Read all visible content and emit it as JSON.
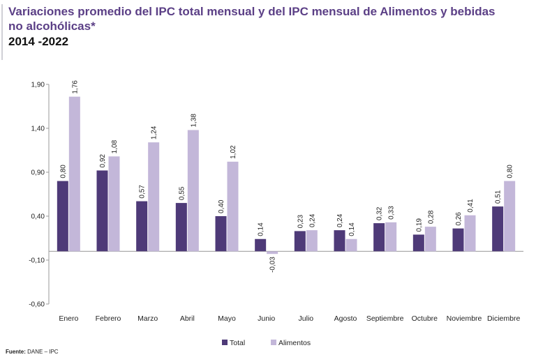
{
  "header": {
    "title": "Variaciones promedio del IPC total mensual y del IPC mensual de Alimentos y bebidas no alcohólicas*",
    "subtitle": "2014 -2022"
  },
  "footer": {
    "source_label": "Fuente:",
    "source_text": "DANE – IPC"
  },
  "colors": {
    "total": "#4e3a78",
    "alimentos": "#c3b7d9"
  },
  "chart_data": {
    "type": "bar",
    "categories": [
      "Enero",
      "Febrero",
      "Marzo",
      "Abril",
      "Mayo",
      "Junio",
      "Julio",
      "Agosto",
      "Septiembre",
      "Octubre",
      "Noviembre",
      "Diciembre"
    ],
    "series": [
      {
        "name": "Total",
        "values": [
          0.8,
          0.92,
          0.57,
          0.55,
          0.4,
          0.14,
          0.23,
          0.24,
          0.32,
          0.19,
          0.26,
          0.51
        ]
      },
      {
        "name": "Alimentos",
        "values": [
          1.76,
          1.08,
          1.24,
          1.38,
          1.02,
          -0.03,
          0.24,
          0.14,
          0.33,
          0.28,
          0.41,
          0.8
        ]
      }
    ],
    "data_labels": {
      "Total": [
        "0,80",
        "0,92",
        "0,57",
        "0,55",
        "0,40",
        "0,14",
        "0,23",
        "0,24",
        "0,32",
        "0,19",
        "0,26",
        "0,51"
      ],
      "Alimentos": [
        "1,76",
        "1,08",
        "1,24",
        "1,38",
        "1,02",
        "-0,03",
        "0,24",
        "0,14",
        "0,33",
        "0,28",
        "0,41",
        "0,80"
      ]
    },
    "y_ticks": [
      -0.6,
      -0.1,
      0.4,
      0.9,
      1.4,
      1.9
    ],
    "y_tick_labels": [
      "-0,60",
      "-0,10",
      "0,40",
      "0,90",
      "1,40",
      "1,90"
    ],
    "ylim": [
      -0.6,
      1.9
    ],
    "grid": false,
    "legend_position": "bottom"
  }
}
